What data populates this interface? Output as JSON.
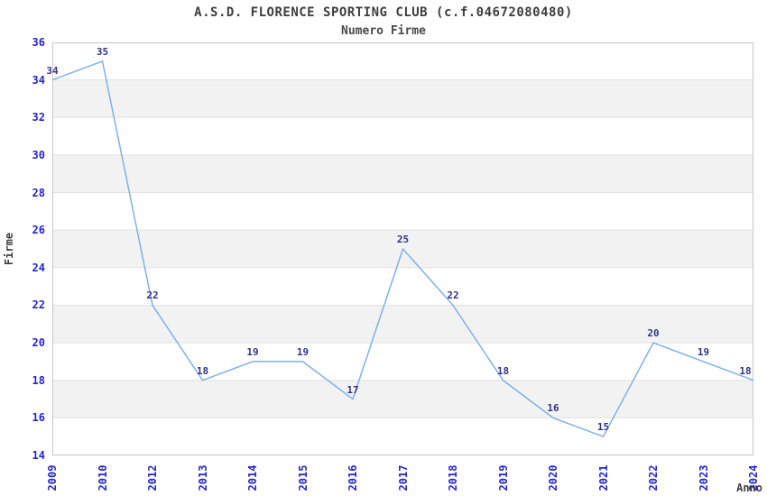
{
  "chart_data": {
    "type": "line",
    "title": "A.S.D. FLORENCE SPORTING CLUB (c.f.04672080480)",
    "subtitle": "Numero Firme",
    "xlabel": "Anno",
    "ylabel": "Firme",
    "categories": [
      "2009",
      "2010",
      "2012",
      "2013",
      "2014",
      "2015",
      "2016",
      "2017",
      "2018",
      "2019",
      "2020",
      "2021",
      "2022",
      "2023",
      "2024"
    ],
    "values": [
      34,
      35,
      22,
      18,
      19,
      19,
      17,
      25,
      22,
      18,
      16,
      15,
      20,
      19,
      18
    ],
    "ylim": [
      14,
      36
    ],
    "ytick_step": 2,
    "yticks": [
      14,
      16,
      18,
      20,
      22,
      24,
      26,
      28,
      30,
      32,
      34,
      36
    ],
    "grid": "horizontal-stripes-alternating",
    "legend": "none",
    "data_labels_shown": true,
    "colors": {
      "line": "#7fb1e8",
      "tick_label": "#2525cc",
      "data_label": "#333388",
      "text": "#3d3d3d",
      "stripe": "#f2f2f2",
      "gridline": "#e2e2e2",
      "plot_border": "#c8c8c8",
      "plot_background": "#ffffff"
    }
  }
}
